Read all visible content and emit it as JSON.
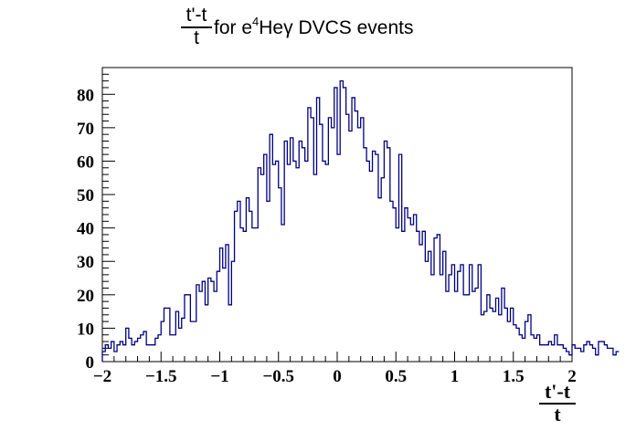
{
  "chart_data": {
    "type": "histogram",
    "title": {
      "frac_num": "t'-t",
      "frac_den": "t",
      "prefix": " for e",
      "superscript": "4",
      "suffix": "Heγ DVCS events"
    },
    "xlabel": {
      "frac_num": "t'-t",
      "frac_den": "t"
    },
    "ylabel": "",
    "xlim": [
      -2,
      2
    ],
    "ylim": [
      0,
      88
    ],
    "x_ticks": [
      -2,
      -1.5,
      -1,
      -0.5,
      0,
      0.5,
      1,
      1.5,
      2
    ],
    "x_tick_labels": [
      "−2",
      "−1.5",
      "−1",
      "−0.5",
      "0",
      "0.5",
      "1",
      "1.5",
      "2"
    ],
    "y_ticks": [
      0,
      10,
      20,
      30,
      40,
      50,
      60,
      70,
      80
    ],
    "y_tick_labels": [
      "0",
      "10",
      "20",
      "30",
      "40",
      "50",
      "60",
      "70",
      "80"
    ],
    "grid": false,
    "legend": "none",
    "line_color": "#000080",
    "bin_width": 0.025,
    "bins_start": -2,
    "series": [
      {
        "values": [
          3,
          5,
          4,
          6,
          3,
          5,
          6,
          5,
          10,
          7,
          5,
          6,
          7,
          8,
          9,
          5,
          5,
          5,
          7,
          8,
          12,
          16,
          16,
          8,
          8,
          15,
          10,
          13,
          20,
          20,
          12,
          12,
          23,
          21,
          24,
          17,
          25,
          24,
          21,
          27,
          34,
          28,
          35,
          17,
          30,
          45,
          48,
          40,
          39,
          49,
          45,
          40,
          40,
          58,
          56,
          62,
          48,
          68,
          59,
          60,
          52,
          41,
          66,
          59,
          67,
          60,
          58,
          66,
          64,
          60,
          76,
          73,
          56,
          79,
          71,
          60,
          59,
          73,
          70,
          82,
          62,
          84,
          82,
          74,
          69,
          79,
          75,
          70,
          73,
          64,
          60,
          57,
          63,
          62,
          49,
          55,
          66,
          64,
          48,
          46,
          40,
          62,
          39,
          46,
          43,
          41,
          44,
          39,
          35,
          39,
          30,
          33,
          26,
          37,
          38,
          26,
          33,
          21,
          26,
          29,
          21,
          27,
          29,
          20,
          20,
          29,
          21,
          22,
          29,
          14,
          15,
          20,
          16,
          15,
          19,
          14,
          22,
          16,
          12,
          16,
          11,
          10,
          8,
          7,
          12,
          14,
          8,
          7,
          8,
          5,
          5,
          5,
          6,
          5,
          8,
          5,
          5,
          4,
          3,
          2,
          5,
          4,
          4,
          3,
          5,
          6,
          5,
          4,
          2,
          6,
          6,
          5,
          4,
          4,
          2,
          3
        ]
      }
    ]
  }
}
